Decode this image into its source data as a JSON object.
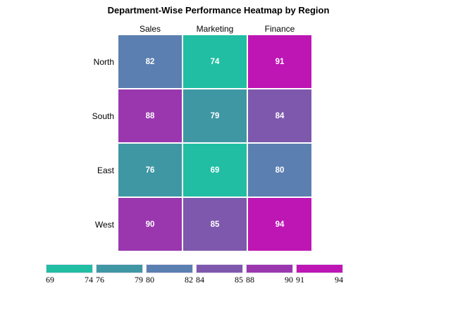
{
  "chart_data": {
    "type": "heatmap",
    "title": "Department-Wise Performance Heatmap by Region",
    "columns": [
      "Sales",
      "Marketing",
      "Finance"
    ],
    "rows": [
      "North",
      "South",
      "East",
      "West"
    ],
    "values": [
      [
        82,
        74,
        91
      ],
      [
        88,
        79,
        84
      ],
      [
        76,
        69,
        80
      ],
      [
        90,
        85,
        94
      ]
    ],
    "legend_bands": [
      {
        "min": 69,
        "max": 74,
        "color": "#21BEA4"
      },
      {
        "min": 76,
        "max": 79,
        "color": "#3F97A4"
      },
      {
        "min": 80,
        "max": 82,
        "color": "#5B7FB0"
      },
      {
        "min": 84,
        "max": 85,
        "color": "#7E58AD"
      },
      {
        "min": 88,
        "max": 90,
        "color": "#9A37AF"
      },
      {
        "min": 91,
        "max": 94,
        "color": "#BE16B4"
      }
    ],
    "layout": {
      "legend_position": "bottom",
      "value_text_color": "#ffffff",
      "background": "#ffffff",
      "grid_gap_color": "#ffffff"
    }
  }
}
